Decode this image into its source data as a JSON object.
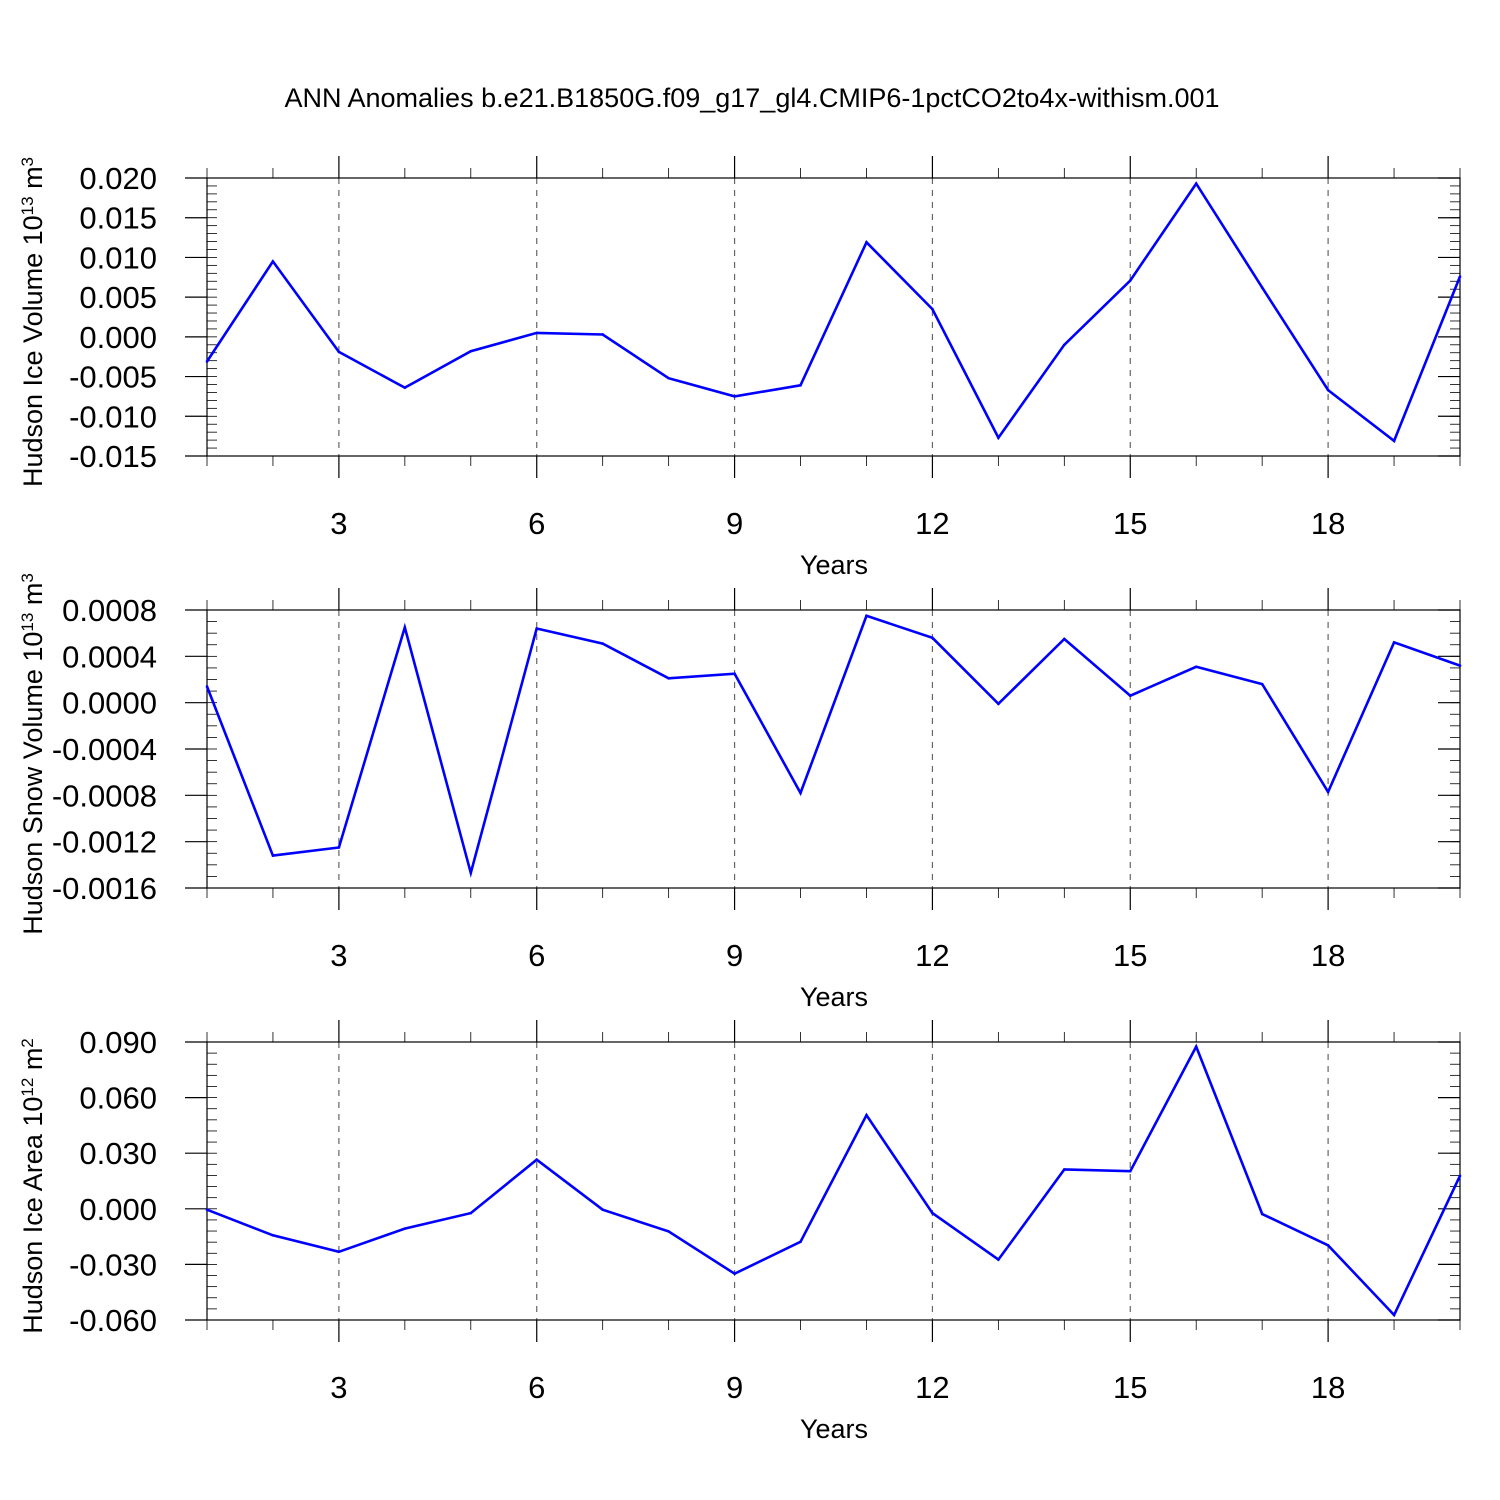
{
  "title": "ANN Anomalies b.e21.B1850G.f09_g17_gl4.CMIP6-1pctCO2to4x-withism.001",
  "line_color": "#0000ff",
  "chart_data": [
    {
      "type": "line",
      "xlabel": "Years",
      "ylabel": "Hudson Ice Volume 10",
      "ylabel_exp": "13",
      "ylabel_unit": " m",
      "ylabel_unit_exp": "3",
      "xlim": [
        1,
        20
      ],
      "ylim": [
        -0.015,
        0.02
      ],
      "x_ticks": [
        3,
        6,
        9,
        12,
        15,
        18
      ],
      "x_tick_labels": [
        "3",
        "6",
        "9",
        "12",
        "15",
        "18"
      ],
      "y_ticks": [
        -0.015,
        -0.01,
        -0.005,
        0.0,
        0.005,
        0.01,
        0.015,
        0.02
      ],
      "y_tick_labels": [
        "-0.015",
        "-0.010",
        "-0.005",
        "0.000",
        "0.005",
        "0.010",
        "0.015",
        "0.020"
      ],
      "y_minor_step": 0.001,
      "x": [
        1,
        2,
        3,
        4,
        5,
        6,
        7,
        8,
        9,
        10,
        11,
        12,
        13,
        14,
        15,
        16,
        17,
        18,
        19,
        20
      ],
      "values": [
        -0.0031,
        0.0095,
        -0.0019,
        -0.0064,
        -0.0018,
        0.0005,
        0.0003,
        -0.0052,
        -0.0075,
        -0.0061,
        0.0119,
        0.0035,
        -0.0127,
        -0.001,
        0.0071,
        0.0193,
        0.0062,
        -0.0067,
        -0.0131,
        0.0076
      ],
      "grid": "x dashed"
    },
    {
      "type": "line",
      "xlabel": "Years",
      "ylabel": "Hudson Snow Volume 10",
      "ylabel_exp": "13",
      "ylabel_unit": " m",
      "ylabel_unit_exp": "3",
      "xlim": [
        1,
        20
      ],
      "ylim": [
        -0.0016,
        0.0008
      ],
      "x_ticks": [
        3,
        6,
        9,
        12,
        15,
        18
      ],
      "x_tick_labels": [
        "3",
        "6",
        "9",
        "12",
        "15",
        "18"
      ],
      "y_ticks": [
        -0.0016,
        -0.0012,
        -0.0008,
        -0.0004,
        0.0,
        0.0004,
        0.0008
      ],
      "y_tick_labels": [
        "-0.0016",
        "-0.0012",
        "-0.0008",
        "-0.0004",
        "0.0000",
        "0.0004",
        "0.0008"
      ],
      "y_minor_step": 0.0001,
      "x": [
        1,
        2,
        3,
        4,
        5,
        6,
        7,
        8,
        9,
        10,
        11,
        12,
        13,
        14,
        15,
        16,
        17,
        18,
        19,
        20
      ],
      "values": [
        0.00014,
        -0.00132,
        -0.00125,
        0.00065,
        -0.00147,
        0.00064,
        0.00051,
        0.00021,
        0.00025,
        -0.00078,
        0.00075,
        0.00056,
        -1e-05,
        0.00055,
        6e-05,
        0.00031,
        0.00016,
        -0.00077,
        0.00052,
        0.00032
      ],
      "grid": "x dashed"
    },
    {
      "type": "line",
      "xlabel": "Years",
      "ylabel": "Hudson Ice Area 10",
      "ylabel_exp": "12",
      "ylabel_unit": " m",
      "ylabel_unit_exp": "2",
      "xlim": [
        1,
        20
      ],
      "ylim": [
        -0.06,
        0.09
      ],
      "x_ticks": [
        3,
        6,
        9,
        12,
        15,
        18
      ],
      "x_tick_labels": [
        "3",
        "6",
        "9",
        "12",
        "15",
        "18"
      ],
      "y_ticks": [
        -0.06,
        -0.03,
        0.0,
        0.03,
        0.06,
        0.09
      ],
      "y_tick_labels": [
        "-0.060",
        "-0.030",
        "0.000",
        "0.030",
        "0.060",
        "0.090"
      ],
      "y_minor_step": 0.006,
      "x": [
        1,
        2,
        3,
        4,
        5,
        6,
        7,
        8,
        9,
        10,
        11,
        12,
        13,
        14,
        15,
        16,
        17,
        18,
        19,
        20
      ],
      "values": [
        -0.0005,
        -0.0143,
        -0.0232,
        -0.0107,
        -0.0023,
        0.0265,
        -0.0005,
        -0.0122,
        -0.035,
        -0.0178,
        0.0505,
        -0.0023,
        -0.0274,
        0.0212,
        0.0203,
        0.0875,
        -0.0028,
        -0.0197,
        -0.0573,
        0.0178
      ],
      "grid": "x dashed"
    }
  ]
}
